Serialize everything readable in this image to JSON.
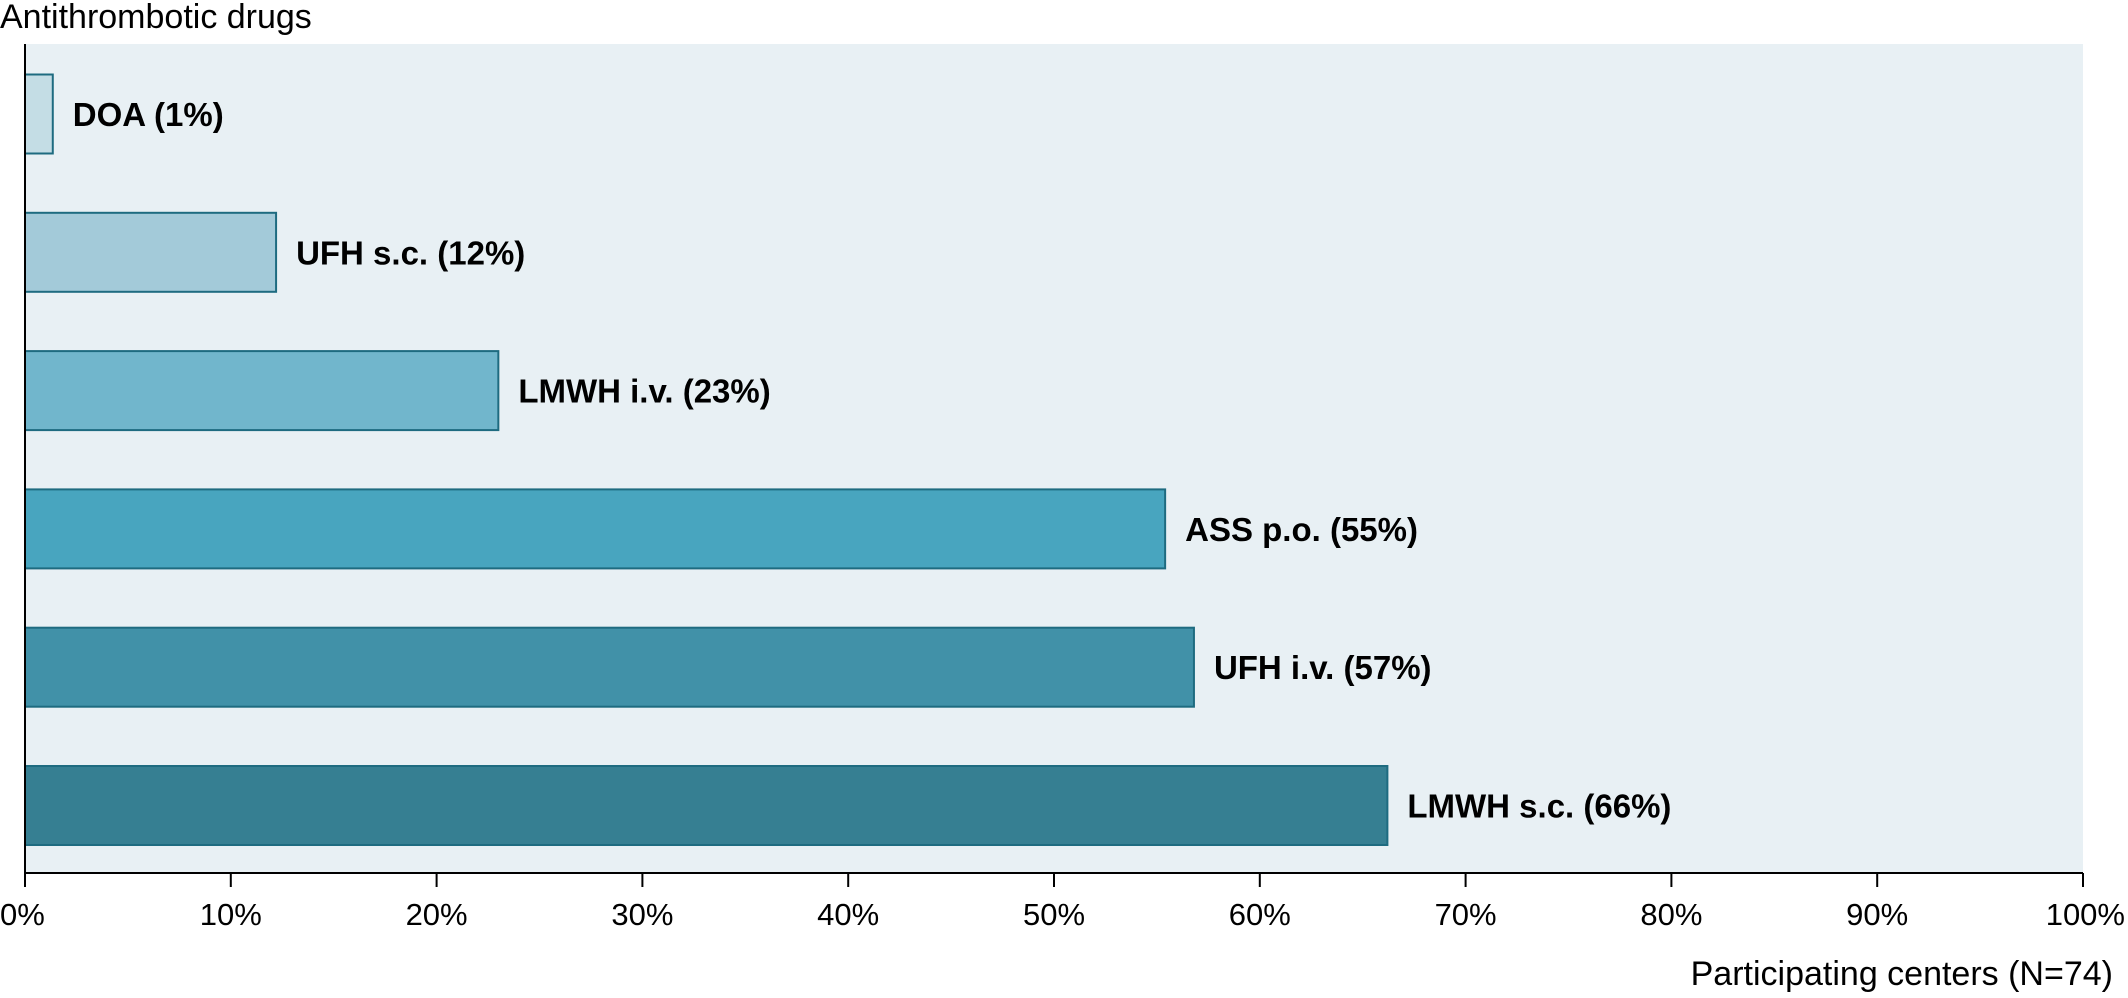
{
  "chart_data": {
    "type": "bar",
    "orientation": "horizontal",
    "ylabel": "Antithrombotic drugs",
    "xlabel": "Participating centers (N=74)",
    "xlim": [
      0,
      100
    ],
    "x_ticks": [
      "0%",
      "10%",
      "20%",
      "30%",
      "40%",
      "50%",
      "60%",
      "70%",
      "80%",
      "90%",
      "100%"
    ],
    "grid": false,
    "categories": [
      "DOA",
      "UFH s.c.",
      "LMWH i.v.",
      "ASS p.o.",
      "UFH i.v.",
      "LMWH s.c."
    ],
    "values": [
      1.35,
      12.2,
      23,
      55.4,
      56.8,
      66.2
    ],
    "data_labels": [
      "DOA (1%)",
      "UFH s.c. (12%)",
      "LMWH i.v. (23%)",
      "ASS p.o. (55%)",
      "UFH i.v. (57%)",
      "LMWH s.c. (66%)"
    ],
    "colors": [
      "#c4dde5",
      "#a3cad9",
      "#71b6cc",
      "#48a5bf",
      "#4191a8",
      "#367f92"
    ],
    "bar_edge_color": "#1e6b80",
    "plot_background": "#e8f0f4"
  }
}
